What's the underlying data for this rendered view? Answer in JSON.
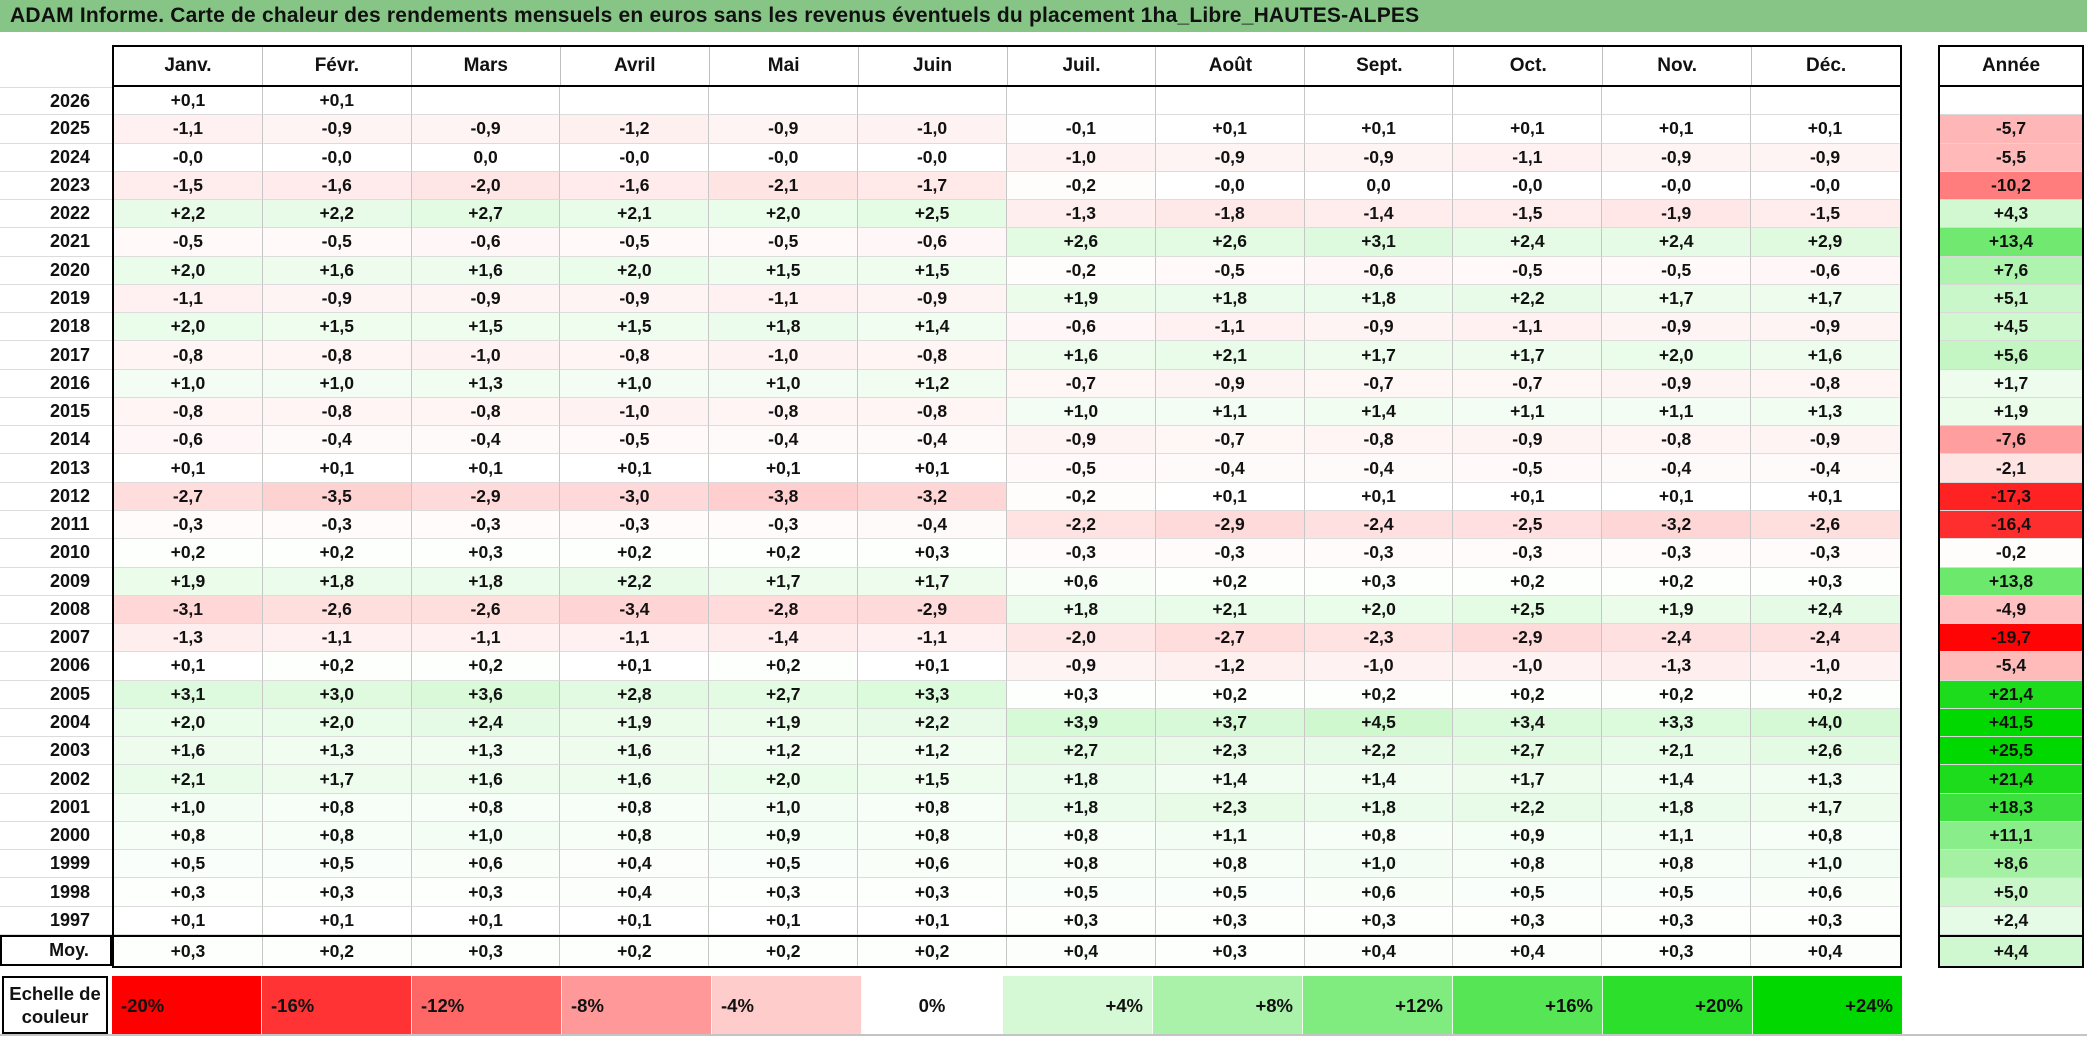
{
  "title": "ADAM Informe. Carte de chaleur des rendements mensuels en euros sans les revenus éventuels du placement 1ha_Libre_HAUTES-ALPES",
  "colors": {
    "title_bg": "#86C586",
    "neutral": "#FFFFFF",
    "negative_extreme_color": "#FF0000",
    "positive_extreme_color": "#00D800",
    "text": "#111111"
  },
  "chart_data": {
    "type": "heatmap",
    "title": "ADAM Informe. Carte de chaleur des rendements mensuels en euros sans les revenus éventuels du placement 1ha_Libre_HAUTES-ALPES",
    "columns": [
      "Janv.",
      "Févr.",
      "Mars",
      "Avril",
      "Mai",
      "Juin",
      "Juil.",
      "Août",
      "Sept.",
      "Oct.",
      "Nov.",
      "Déc."
    ],
    "annual_column": "Année",
    "color_scale": {
      "label": "Echelle de couleur",
      "negative_limit": -20,
      "positive_limit": 24,
      "stops": [
        {
          "label": "-20%",
          "value": -20
        },
        {
          "label": "-16%",
          "value": -16
        },
        {
          "label": "-12%",
          "value": -12
        },
        {
          "label": "-8%",
          "value": -8
        },
        {
          "label": "-4%",
          "value": -4
        },
        {
          "label": "0%",
          "value": 0
        },
        {
          "label": "+4%",
          "value": 4
        },
        {
          "label": "+8%",
          "value": 8
        },
        {
          "label": "+12%",
          "value": 12
        },
        {
          "label": "+16%",
          "value": 16
        },
        {
          "label": "+20%",
          "value": 20
        },
        {
          "label": "+24%",
          "value": 24
        }
      ]
    },
    "rows": [
      {
        "year": "2026",
        "monthly": [
          "+0,1",
          "+0,1",
          "",
          "",
          "",
          "",
          "",
          "",
          "",
          "",
          "",
          ""
        ],
        "annual": ""
      },
      {
        "year": "2025",
        "monthly": [
          "-1,1",
          "-0,9",
          "-0,9",
          "-1,2",
          "-0,9",
          "-1,0",
          "-0,1",
          "+0,1",
          "+0,1",
          "+0,1",
          "+0,1",
          "+0,1"
        ],
        "annual": "-5,7"
      },
      {
        "year": "2024",
        "monthly": [
          "-0,0",
          "-0,0",
          "0,0",
          "-0,0",
          "-0,0",
          "-0,0",
          "-1,0",
          "-0,9",
          "-0,9",
          "-1,1",
          "-0,9",
          "-0,9"
        ],
        "annual": "-5,5"
      },
      {
        "year": "2023",
        "monthly": [
          "-1,5",
          "-1,6",
          "-2,0",
          "-1,6",
          "-2,1",
          "-1,7",
          "-0,2",
          "-0,0",
          "0,0",
          "-0,0",
          "-0,0",
          "-0,0"
        ],
        "annual": "-10,2"
      },
      {
        "year": "2022",
        "monthly": [
          "+2,2",
          "+2,2",
          "+2,7",
          "+2,1",
          "+2,0",
          "+2,5",
          "-1,3",
          "-1,8",
          "-1,4",
          "-1,5",
          "-1,9",
          "-1,5"
        ],
        "annual": "+4,3"
      },
      {
        "year": "2021",
        "monthly": [
          "-0,5",
          "-0,5",
          "-0,6",
          "-0,5",
          "-0,5",
          "-0,6",
          "+2,6",
          "+2,6",
          "+3,1",
          "+2,4",
          "+2,4",
          "+2,9"
        ],
        "annual": "+13,4"
      },
      {
        "year": "2020",
        "monthly": [
          "+2,0",
          "+1,6",
          "+1,6",
          "+2,0",
          "+1,5",
          "+1,5",
          "-0,2",
          "-0,5",
          "-0,6",
          "-0,5",
          "-0,5",
          "-0,6"
        ],
        "annual": "+7,6"
      },
      {
        "year": "2019",
        "monthly": [
          "-1,1",
          "-0,9",
          "-0,9",
          "-0,9",
          "-1,1",
          "-0,9",
          "+1,9",
          "+1,8",
          "+1,8",
          "+2,2",
          "+1,7",
          "+1,7"
        ],
        "annual": "+5,1"
      },
      {
        "year": "2018",
        "monthly": [
          "+2,0",
          "+1,5",
          "+1,5",
          "+1,5",
          "+1,8",
          "+1,4",
          "-0,6",
          "-1,1",
          "-0,9",
          "-1,1",
          "-0,9",
          "-0,9"
        ],
        "annual": "+4,5"
      },
      {
        "year": "2017",
        "monthly": [
          "-0,8",
          "-0,8",
          "-1,0",
          "-0,8",
          "-1,0",
          "-0,8",
          "+1,6",
          "+2,1",
          "+1,7",
          "+1,7",
          "+2,0",
          "+1,6"
        ],
        "annual": "+5,6"
      },
      {
        "year": "2016",
        "monthly": [
          "+1,0",
          "+1,0",
          "+1,3",
          "+1,0",
          "+1,0",
          "+1,2",
          "-0,7",
          "-0,9",
          "-0,7",
          "-0,7",
          "-0,9",
          "-0,8"
        ],
        "annual": "+1,7"
      },
      {
        "year": "2015",
        "monthly": [
          "-0,8",
          "-0,8",
          "-0,8",
          "-1,0",
          "-0,8",
          "-0,8",
          "+1,0",
          "+1,1",
          "+1,4",
          "+1,1",
          "+1,1",
          "+1,3"
        ],
        "annual": "+1,9"
      },
      {
        "year": "2014",
        "monthly": [
          "-0,6",
          "-0,4",
          "-0,4",
          "-0,5",
          "-0,4",
          "-0,4",
          "-0,9",
          "-0,7",
          "-0,8",
          "-0,9",
          "-0,8",
          "-0,9"
        ],
        "annual": "-7,6"
      },
      {
        "year": "2013",
        "monthly": [
          "+0,1",
          "+0,1",
          "+0,1",
          "+0,1",
          "+0,1",
          "+0,1",
          "-0,5",
          "-0,4",
          "-0,4",
          "-0,5",
          "-0,4",
          "-0,4"
        ],
        "annual": "-2,1"
      },
      {
        "year": "2012",
        "monthly": [
          "-2,7",
          "-3,5",
          "-2,9",
          "-3,0",
          "-3,8",
          "-3,2",
          "-0,2",
          "+0,1",
          "+0,1",
          "+0,1",
          "+0,1",
          "+0,1"
        ],
        "annual": "-17,3"
      },
      {
        "year": "2011",
        "monthly": [
          "-0,3",
          "-0,3",
          "-0,3",
          "-0,3",
          "-0,3",
          "-0,4",
          "-2,2",
          "-2,9",
          "-2,4",
          "-2,5",
          "-3,2",
          "-2,6"
        ],
        "annual": "-16,4"
      },
      {
        "year": "2010",
        "monthly": [
          "+0,2",
          "+0,2",
          "+0,3",
          "+0,2",
          "+0,2",
          "+0,3",
          "-0,3",
          "-0,3",
          "-0,3",
          "-0,3",
          "-0,3",
          "-0,3"
        ],
        "annual": "-0,2"
      },
      {
        "year": "2009",
        "monthly": [
          "+1,9",
          "+1,8",
          "+1,8",
          "+2,2",
          "+1,7",
          "+1,7",
          "+0,6",
          "+0,2",
          "+0,3",
          "+0,2",
          "+0,2",
          "+0,3"
        ],
        "annual": "+13,8"
      },
      {
        "year": "2008",
        "monthly": [
          "-3,1",
          "-2,6",
          "-2,6",
          "-3,4",
          "-2,8",
          "-2,9",
          "+1,8",
          "+2,1",
          "+2,0",
          "+2,5",
          "+1,9",
          "+2,4"
        ],
        "annual": "-4,9"
      },
      {
        "year": "2007",
        "monthly": [
          "-1,3",
          "-1,1",
          "-1,1",
          "-1,1",
          "-1,4",
          "-1,1",
          "-2,0",
          "-2,7",
          "-2,3",
          "-2,9",
          "-2,4",
          "-2,4"
        ],
        "annual": "-19,7"
      },
      {
        "year": "2006",
        "monthly": [
          "+0,1",
          "+0,2",
          "+0,2",
          "+0,1",
          "+0,2",
          "+0,1",
          "-0,9",
          "-1,2",
          "-1,0",
          "-1,0",
          "-1,3",
          "-1,0"
        ],
        "annual": "-5,4"
      },
      {
        "year": "2005",
        "monthly": [
          "+3,1",
          "+3,0",
          "+3,6",
          "+2,8",
          "+2,7",
          "+3,3",
          "+0,3",
          "+0,2",
          "+0,2",
          "+0,2",
          "+0,2",
          "+0,2"
        ],
        "annual": "+21,4"
      },
      {
        "year": "2004",
        "monthly": [
          "+2,0",
          "+2,0",
          "+2,4",
          "+1,9",
          "+1,9",
          "+2,2",
          "+3,9",
          "+3,7",
          "+4,5",
          "+3,4",
          "+3,3",
          "+4,0"
        ],
        "annual": "+41,5"
      },
      {
        "year": "2003",
        "monthly": [
          "+1,6",
          "+1,3",
          "+1,3",
          "+1,6",
          "+1,2",
          "+1,2",
          "+2,7",
          "+2,3",
          "+2,2",
          "+2,7",
          "+2,1",
          "+2,6"
        ],
        "annual": "+25,5"
      },
      {
        "year": "2002",
        "monthly": [
          "+2,1",
          "+1,7",
          "+1,6",
          "+1,6",
          "+2,0",
          "+1,5",
          "+1,8",
          "+1,4",
          "+1,4",
          "+1,7",
          "+1,4",
          "+1,3"
        ],
        "annual": "+21,4"
      },
      {
        "year": "2001",
        "monthly": [
          "+1,0",
          "+0,8",
          "+0,8",
          "+0,8",
          "+1,0",
          "+0,8",
          "+1,8",
          "+2,3",
          "+1,8",
          "+2,2",
          "+1,8",
          "+1,7"
        ],
        "annual": "+18,3"
      },
      {
        "year": "2000",
        "monthly": [
          "+0,8",
          "+0,8",
          "+1,0",
          "+0,8",
          "+0,9",
          "+0,8",
          "+0,8",
          "+1,1",
          "+0,8",
          "+0,9",
          "+1,1",
          "+0,8"
        ],
        "annual": "+11,1"
      },
      {
        "year": "1999",
        "monthly": [
          "+0,5",
          "+0,5",
          "+0,6",
          "+0,4",
          "+0,5",
          "+0,6",
          "+0,8",
          "+0,8",
          "+1,0",
          "+0,8",
          "+0,8",
          "+1,0"
        ],
        "annual": "+8,6"
      },
      {
        "year": "1998",
        "monthly": [
          "+0,3",
          "+0,3",
          "+0,3",
          "+0,4",
          "+0,3",
          "+0,3",
          "+0,5",
          "+0,5",
          "+0,6",
          "+0,5",
          "+0,5",
          "+0,6"
        ],
        "annual": "+5,0"
      },
      {
        "year": "1997",
        "monthly": [
          "+0,1",
          "+0,1",
          "+0,1",
          "+0,1",
          "+0,1",
          "+0,1",
          "+0,3",
          "+0,3",
          "+0,3",
          "+0,3",
          "+0,3",
          "+0,3"
        ],
        "annual": "+2,4"
      }
    ],
    "average_row": {
      "label": "Moy.",
      "monthly": [
        "+0,3",
        "+0,2",
        "+0,3",
        "+0,2",
        "+0,2",
        "+0,2",
        "+0,4",
        "+0,3",
        "+0,4",
        "+0,4",
        "+0,3",
        "+0,4"
      ],
      "annual": "+4,4"
    }
  }
}
